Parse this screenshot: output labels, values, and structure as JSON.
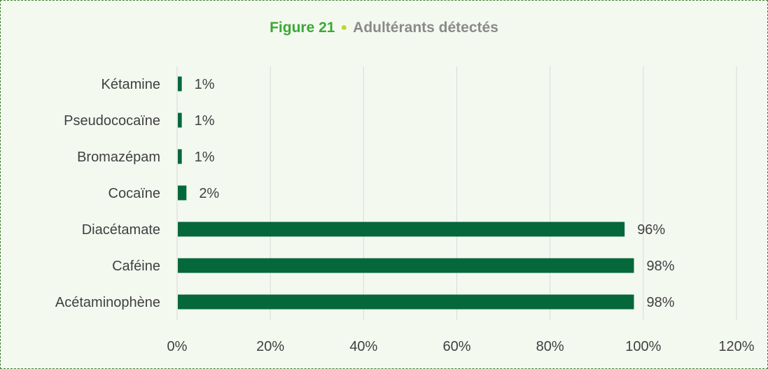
{
  "figure": {
    "number": "Figure 21",
    "title": "Adultérants détectés"
  },
  "colors": {
    "background": "#f4f9f0",
    "bar": "#04683a",
    "figure_number": "#3aa935",
    "title_dot": "#c3d62a",
    "title_text": "#8a8a8a",
    "border": "#3f7f2e",
    "grid": "#d9d9d9"
  },
  "chart_data": {
    "type": "bar",
    "orientation": "horizontal",
    "categories": [
      "Kétamine",
      "Pseudococaïne",
      "Bromazépam",
      "Cocaïne",
      "Diacétamate",
      "Caféine",
      "Acétaminophène"
    ],
    "values": [
      1,
      1,
      1,
      2,
      96,
      98,
      98
    ],
    "data_labels": [
      "1%",
      "1%",
      "1%",
      "2%",
      "96%",
      "98%",
      "98%"
    ],
    "x_ticks": [
      "0%",
      "20%",
      "40%",
      "60%",
      "80%",
      "100%",
      "120%"
    ],
    "xlim": [
      0,
      120
    ],
    "unit": "%",
    "grid": true,
    "legend": false
  }
}
